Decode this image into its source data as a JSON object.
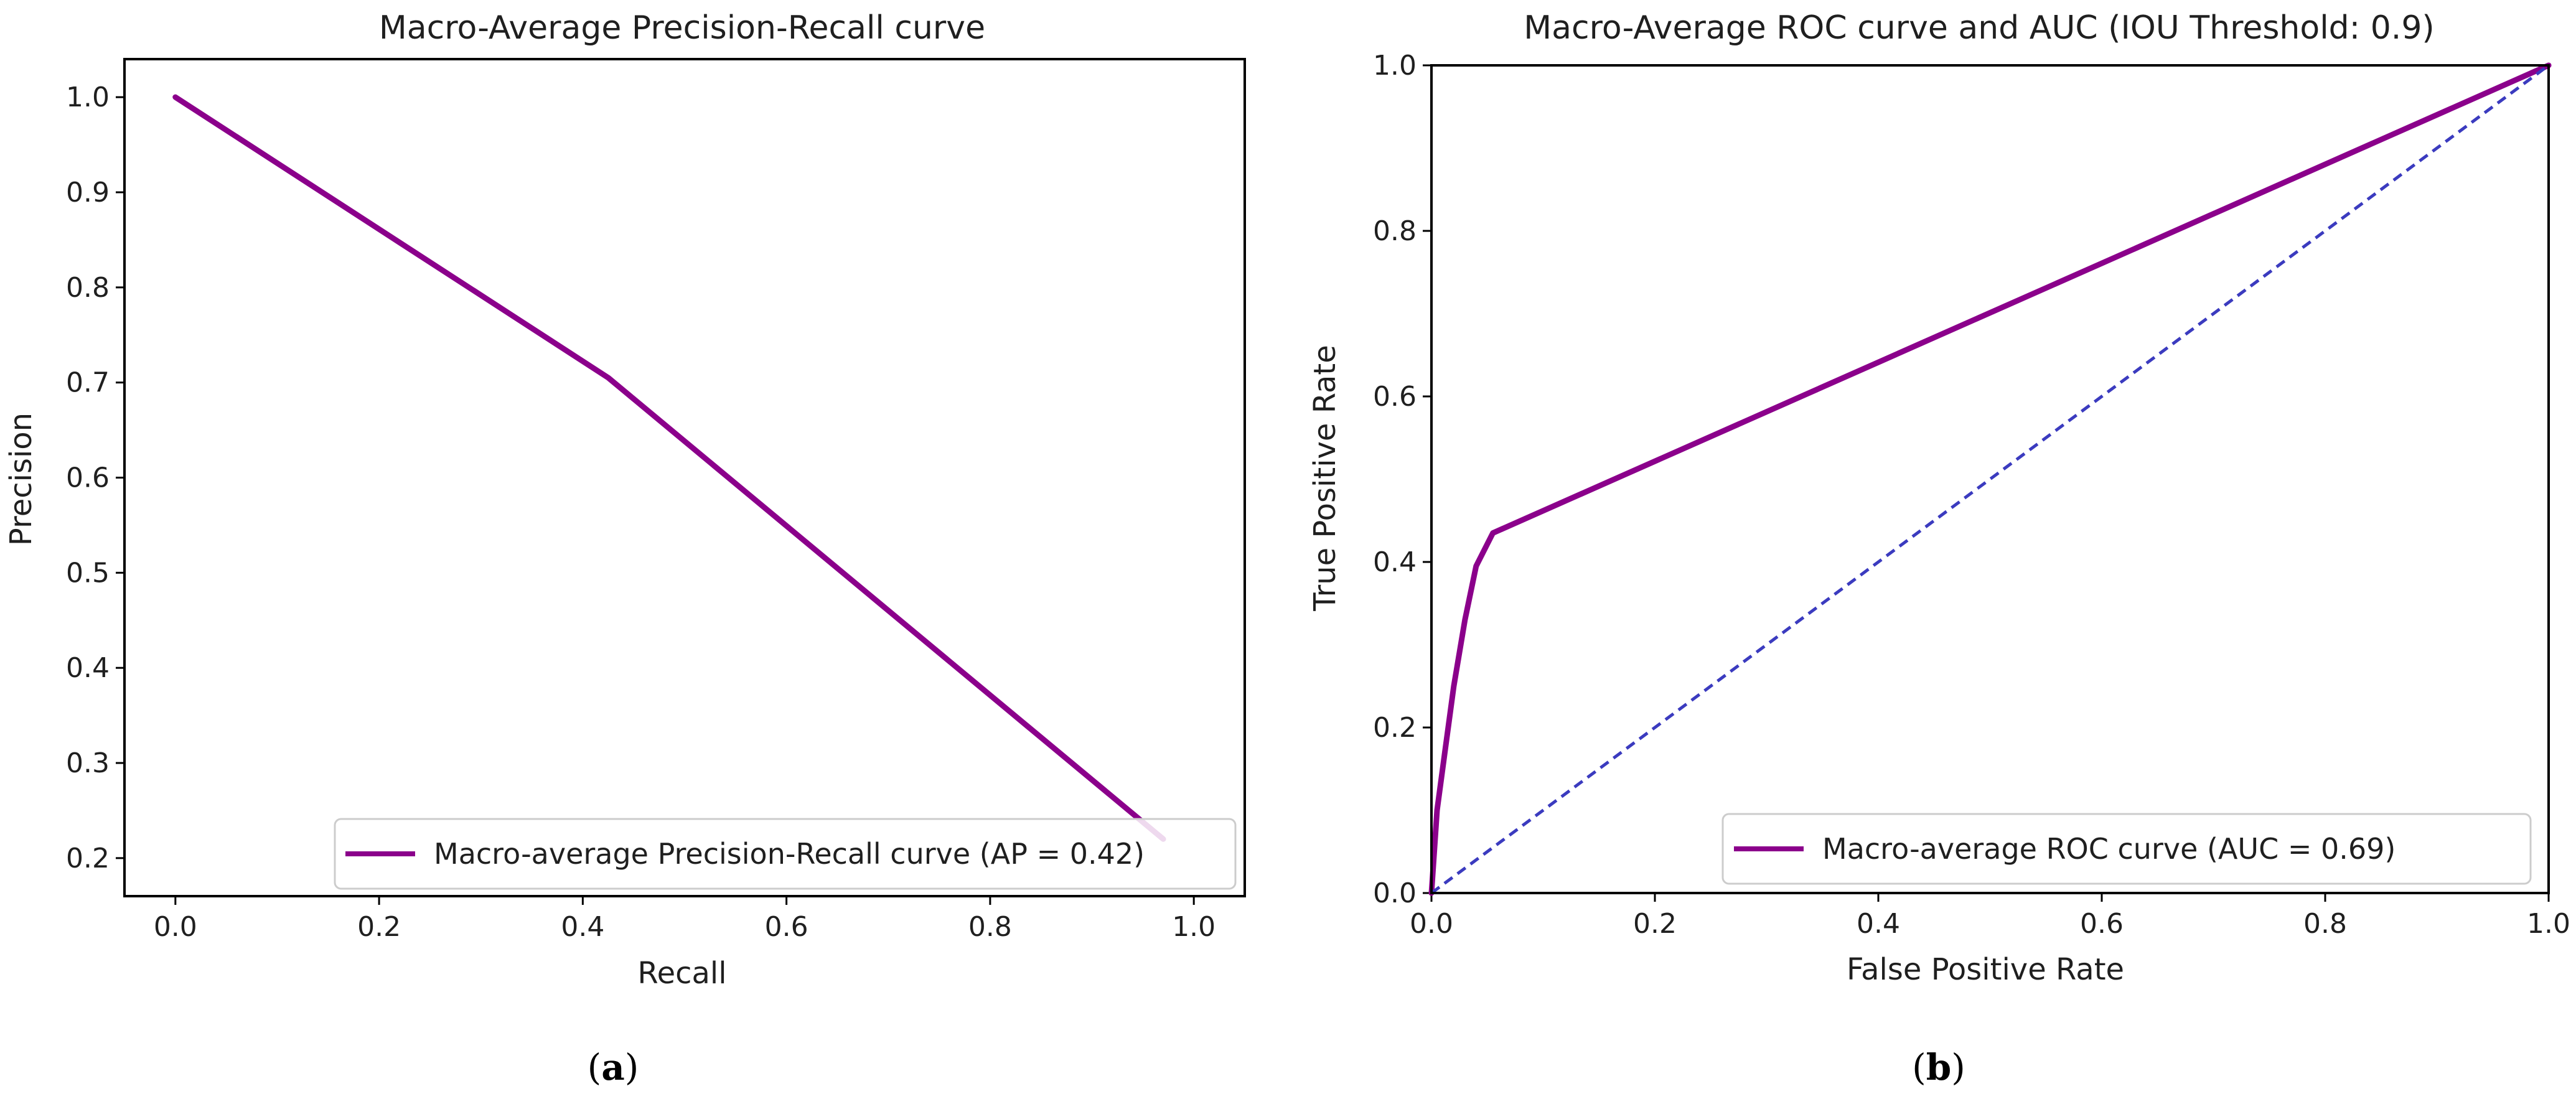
{
  "chart_data": [
    {
      "type": "line",
      "title": "Macro-Average Precision-Recall curve",
      "xlabel": "Recall",
      "ylabel": "Precision",
      "xlim": [
        -0.05,
        1.05
      ],
      "ylim": [
        0.16,
        1.04
      ],
      "xticks": [
        0.0,
        0.2,
        0.4,
        0.6,
        0.8,
        1.0
      ],
      "xtick_labels": [
        "0.0",
        "0.2",
        "0.4",
        "0.6",
        "0.8",
        "1.0"
      ],
      "yticks": [
        0.2,
        0.3,
        0.4,
        0.5,
        0.6,
        0.7,
        0.8,
        0.9,
        1.0
      ],
      "ytick_labels": [
        "0.2",
        "0.3",
        "0.4",
        "0.5",
        "0.6",
        "0.7",
        "0.8",
        "0.9",
        "1.0"
      ],
      "grid": false,
      "legend_position": "lower-right",
      "series": [
        {
          "name": "Macro-average Precision-Recall curve (AP = 0.42)",
          "color": "#8b008b",
          "style": "solid",
          "x": [
            0.0,
            0.425,
            0.97
          ],
          "y": [
            1.0,
            0.705,
            0.22
          ]
        }
      ],
      "caption": {
        "open": "(",
        "letter": "a",
        "close": ")"
      }
    },
    {
      "type": "line",
      "title": "Macro-Average ROC curve and AUC (IOU Threshold: 0.9)",
      "xlabel": "False Positive Rate",
      "ylabel": "True Positive Rate",
      "xlim": [
        0.0,
        1.0
      ],
      "ylim": [
        0.0,
        1.0
      ],
      "xticks": [
        0.0,
        0.2,
        0.4,
        0.6,
        0.8,
        1.0
      ],
      "xtick_labels": [
        "0.0",
        "0.2",
        "0.4",
        "0.6",
        "0.8",
        "1.0"
      ],
      "yticks": [
        0.0,
        0.2,
        0.4,
        0.6,
        0.8,
        1.0
      ],
      "ytick_labels": [
        "0.0",
        "0.2",
        "0.4",
        "0.6",
        "0.8",
        "1.0"
      ],
      "grid": false,
      "legend_position": "lower-right",
      "series": [
        {
          "name": "Macro-average ROC curve (AUC = 0.69)",
          "color": "#8b008b",
          "style": "solid",
          "x": [
            0.0,
            0.005,
            0.012,
            0.02,
            0.03,
            0.04,
            0.055,
            1.0
          ],
          "y": [
            0.0,
            0.1,
            0.17,
            0.25,
            0.33,
            0.395,
            0.435,
            1.0
          ]
        },
        {
          "color": "#3b3bbf",
          "style": "dashed",
          "x": [
            0.0,
            1.0
          ],
          "y": [
            0.0,
            1.0
          ]
        }
      ],
      "caption": {
        "open": "(",
        "letter": "b",
        "close": ")"
      }
    }
  ]
}
